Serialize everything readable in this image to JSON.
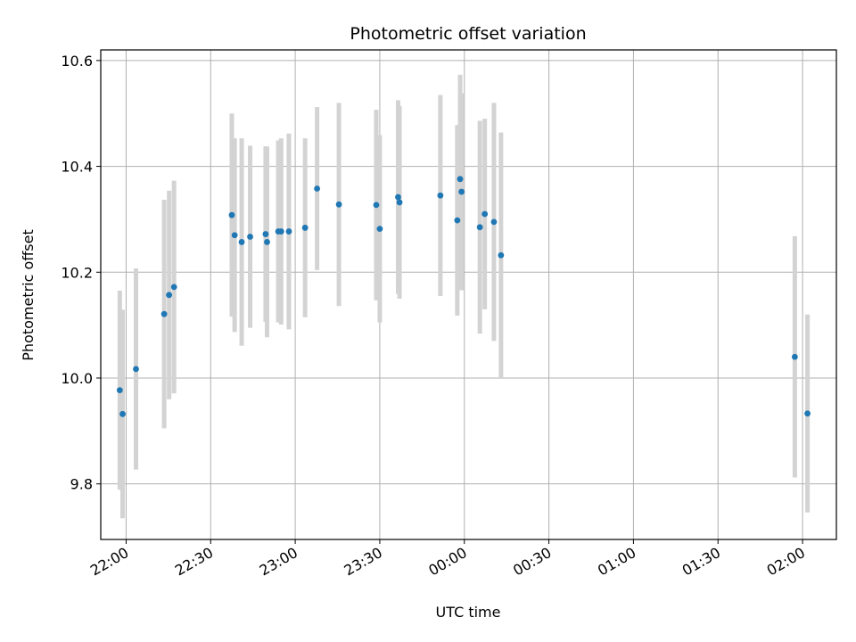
{
  "chart_data": {
    "type": "scatter",
    "title": "Photometric offset variation",
    "xlabel": "UTC time",
    "ylabel": "Photometric offset",
    "grid": true,
    "xlim": [
      "21:51",
      "02:12"
    ],
    "ylim": [
      9.695,
      10.62
    ],
    "x_ticks": [
      "22:00",
      "22:30",
      "23:00",
      "23:30",
      "00:00",
      "00:30",
      "01:00",
      "01:30",
      "02:00"
    ],
    "y_ticks": [
      "9.8",
      "10.0",
      "10.2",
      "10.4",
      "10.6"
    ],
    "point_color": "#1f77b4",
    "errorbar_color": "#d3d3d3",
    "points": [
      {
        "time": "21:57:45",
        "y": 9.977,
        "err": 0.188
      },
      {
        "time": "21:58:45",
        "y": 9.932,
        "err": 0.197
      },
      {
        "time": "22:03:30",
        "y": 10.017,
        "err": 0.19
      },
      {
        "time": "22:13:30",
        "y": 10.121,
        "err": 0.216
      },
      {
        "time": "22:15:15",
        "y": 10.157,
        "err": 0.197
      },
      {
        "time": "22:17:00",
        "y": 10.172,
        "err": 0.201
      },
      {
        "time": "22:37:30",
        "y": 10.308,
        "err": 0.192
      },
      {
        "time": "22:38:30",
        "y": 10.27,
        "err": 0.183
      },
      {
        "time": "22:41:00",
        "y": 10.257,
        "err": 0.196
      },
      {
        "time": "22:44:00",
        "y": 10.267,
        "err": 0.172
      },
      {
        "time": "22:49:30",
        "y": 10.272,
        "err": 0.166
      },
      {
        "time": "22:50:00",
        "y": 10.257,
        "err": 0.18
      },
      {
        "time": "22:54:00",
        "y": 10.277,
        "err": 0.172
      },
      {
        "time": "22:55:00",
        "y": 10.277,
        "err": 0.176
      },
      {
        "time": "22:57:45",
        "y": 10.277,
        "err": 0.185
      },
      {
        "time": "23:03:30",
        "y": 10.284,
        "err": 0.169
      },
      {
        "time": "23:07:45",
        "y": 10.358,
        "err": 0.154
      },
      {
        "time": "23:15:30",
        "y": 10.328,
        "err": 0.192
      },
      {
        "time": "23:28:45",
        "y": 10.327,
        "err": 0.18
      },
      {
        "time": "23:30:00",
        "y": 10.282,
        "err": 0.177
      },
      {
        "time": "23:36:30",
        "y": 10.342,
        "err": 0.183
      },
      {
        "time": "23:37:00",
        "y": 10.332,
        "err": 0.182
      },
      {
        "time": "23:51:30",
        "y": 10.345,
        "err": 0.19
      },
      {
        "time": "23:57:30",
        "y": 10.298,
        "err": 0.18
      },
      {
        "time": "23:58:30",
        "y": 10.376,
        "err": 0.197
      },
      {
        "time": "23:59:00",
        "y": 10.352,
        "err": 0.186
      },
      {
        "time": "00:05:30",
        "y": 10.285,
        "err": 0.201
      },
      {
        "time": "00:07:15",
        "y": 10.31,
        "err": 0.18
      },
      {
        "time": "00:10:30",
        "y": 10.295,
        "err": 0.225
      },
      {
        "time": "00:13:00",
        "y": 10.232,
        "err": 0.232
      },
      {
        "time": "01:57:15",
        "y": 10.04,
        "err": 0.228
      },
      {
        "time": "02:01:45",
        "y": 9.933,
        "err": 0.187
      }
    ]
  }
}
